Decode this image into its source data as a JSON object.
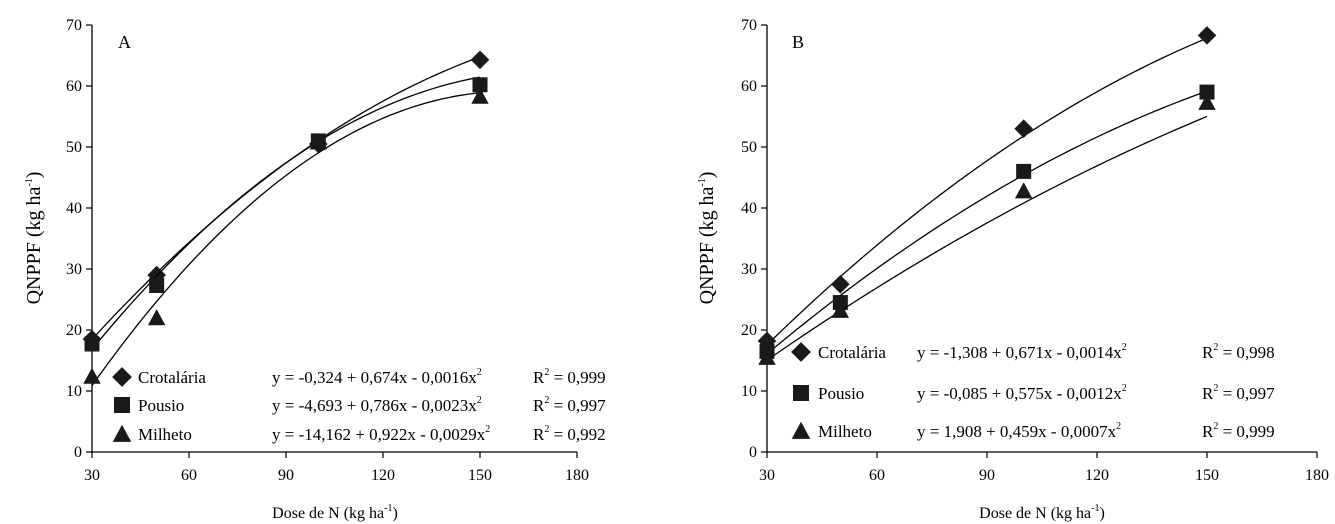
{
  "chart_data": [
    {
      "type": "scatter",
      "panel_label": "A",
      "ylabel": "QNPPF (kg ha",
      "ylabel_sup": "-1",
      "ylabel_end": ")",
      "xlabel": "Dose de N (kg ha",
      "xlabel_sup": "-1",
      "xlabel_end": ")",
      "xlim": [
        30,
        180
      ],
      "ylim": [
        0,
        70
      ],
      "xticks": [
        "30",
        "60",
        "90",
        "120",
        "150",
        "180"
      ],
      "yticks": [
        "0",
        "10",
        "20",
        "30",
        "40",
        "50",
        "60",
        "70"
      ],
      "x": [
        30,
        50,
        100,
        150
      ],
      "colors": {
        "axis": "#000000",
        "marker": "#1a1a1a",
        "line": "#000000"
      },
      "series": [
        {
          "name": "Crotalária",
          "marker": "diamond",
          "values": [
            18.5,
            29,
            50.5,
            64.3
          ],
          "coef": [
            -0.324,
            0.674,
            -0.0016
          ],
          "equation": "y = -0,324 + 0,674x - 0,0016x",
          "r2_label": "R",
          "r2_value": " = 0,999"
        },
        {
          "name": "Pousio",
          "marker": "square",
          "values": [
            17.7,
            27.3,
            51,
            60.2
          ],
          "coef": [
            -4.693,
            0.786,
            -0.0023
          ],
          "equation": "y = -4,693 + 0,786x - 0,0023x",
          "r2_label": "R",
          "r2_value": " = 0,997"
        },
        {
          "name": "Milheto",
          "marker": "triangle",
          "values": [
            12.4,
            22,
            50.8,
            58.3
          ],
          "coef": [
            -14.162,
            0.922,
            -0.0029
          ],
          "equation": "y = -14,162 + 0,922x - 0,0029x",
          "r2_label": "R",
          "r2_value": " = 0,992"
        }
      ]
    },
    {
      "type": "scatter",
      "panel_label": "B",
      "ylabel": "QNPPF (kg ha",
      "ylabel_sup": "-1",
      "ylabel_end": ")",
      "xlabel": "Dose de N (kg ha",
      "xlabel_sup": "-1",
      "xlabel_end": ")",
      "xlim": [
        30,
        180
      ],
      "ylim": [
        0,
        70
      ],
      "xticks": [
        "30",
        "60",
        "90",
        "120",
        "150",
        "180"
      ],
      "yticks": [
        "0",
        "10",
        "20",
        "30",
        "40",
        "50",
        "60",
        "70"
      ],
      "x": [
        30,
        50,
        100,
        150
      ],
      "colors": {
        "axis": "#000000",
        "marker": "#1a1a1a",
        "line": "#000000"
      },
      "series": [
        {
          "name": "Crotalária",
          "marker": "diamond",
          "values": [
            18.2,
            27.5,
            53,
            68.3
          ],
          "coef": [
            -1.308,
            0.671,
            -0.0014
          ],
          "equation": "y = -1,308 + 0,671x - 0,0014x",
          "r2_label": "R",
          "r2_value": " = 0,998"
        },
        {
          "name": "Pousio",
          "marker": "square",
          "values": [
            16.5,
            24.5,
            46,
            59
          ],
          "coef": [
            -0.085,
            0.575,
            -0.0012
          ],
          "equation": "y = -0,085 + 0,575x - 0,0012x",
          "r2_label": "R",
          "r2_value": " = 0,997"
        },
        {
          "name": "Milheto",
          "marker": "triangle",
          "values": [
            15.5,
            23.2,
            42.8,
            57.3
          ],
          "coef": [
            1.908,
            0.459,
            -0.0007
          ],
          "equation": "y = 1,908 + 0,459x - 0,0007x",
          "r2_label": "R",
          "r2_value": " = 0,999"
        }
      ]
    }
  ]
}
